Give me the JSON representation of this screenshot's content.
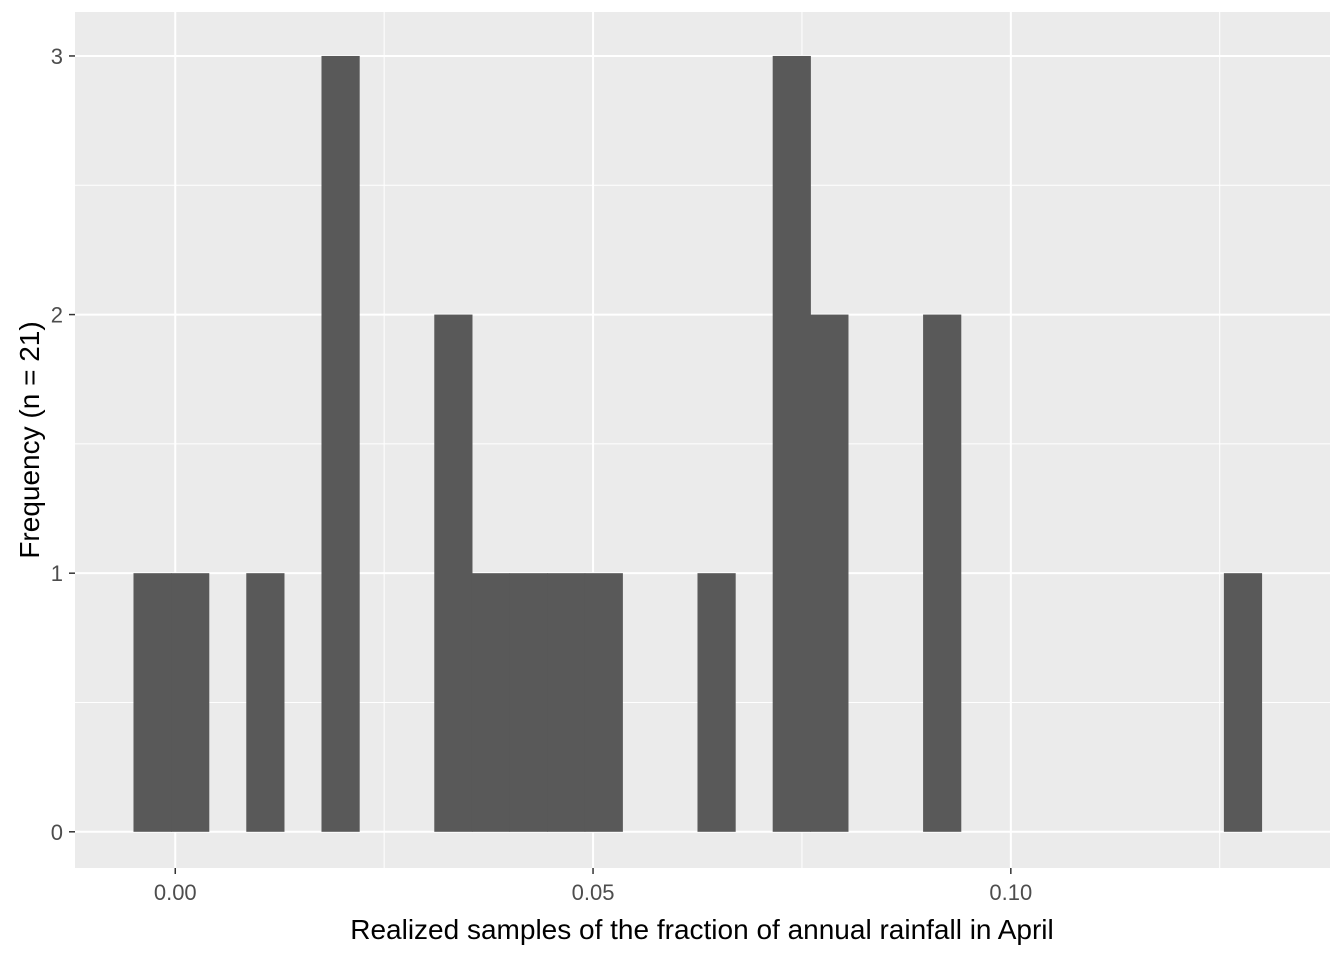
{
  "chart_data": {
    "type": "bar",
    "subtype": "histogram",
    "title": "",
    "xlabel": "Realized samples of the fraction of annual rainfall in April",
    "ylabel": "Frequency (n = 21)",
    "n": 21,
    "bin_start": -0.005,
    "bin_width": 0.0045,
    "counts": [
      1,
      1,
      0,
      1,
      0,
      3,
      0,
      0,
      2,
      1,
      1,
      1,
      1,
      0,
      0,
      1,
      0,
      3,
      2,
      0,
      0,
      2,
      0,
      0,
      0,
      0,
      0,
      0,
      0,
      1
    ],
    "x_ticks": [
      0.0,
      0.05,
      0.1
    ],
    "x_tick_labels": [
      "0.00",
      "0.05",
      "0.10"
    ],
    "y_ticks": [
      0,
      1,
      2,
      3
    ],
    "y_tick_labels": [
      "0",
      "1",
      "2",
      "3"
    ],
    "x_minor": [
      0.025,
      0.075,
      0.125
    ],
    "y_minor": [
      0.5,
      1.5,
      2.5
    ],
    "xlim": [
      -0.012,
      0.1382
    ],
    "ylim": [
      -0.14,
      3.17
    ],
    "grid": "on",
    "legend": null,
    "colors": {
      "bar": "#595959",
      "panel_bg": "#EBEBEB",
      "grid": "#FFFFFF",
      "tick_text": "#4D4D4D",
      "tick_mark": "#333333",
      "axis_title": "#000000",
      "outer_bg": "#FFFFFF"
    }
  }
}
